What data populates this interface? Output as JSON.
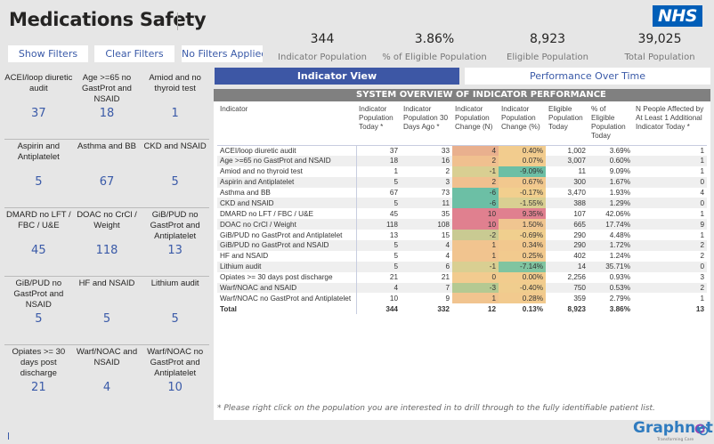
{
  "title": "Medications Safety",
  "filters": {
    "show": "Show Filters",
    "clear": "Clear Filters",
    "status": "No Filters Applied"
  },
  "kpis": [
    {
      "value": "344",
      "label": "Indicator Population"
    },
    {
      "value": "3.86%",
      "label": "% of Eligible Population"
    },
    {
      "value": "8,923",
      "label": "Eligible Population"
    },
    {
      "value": "39,025",
      "label": "Total Population"
    }
  ],
  "logo": "NHS",
  "tabs": {
    "indicator_view": "Indicator View",
    "performance": "Performance Over Time"
  },
  "tiles": [
    {
      "label": "ACEI/loop diuretic audit",
      "value": "37"
    },
    {
      "label": "Age >=65 no GastProt and NSAID",
      "value": "18"
    },
    {
      "label": "Amiod and no thyroid test",
      "value": "1"
    },
    {
      "label": "Aspirin and Antiplatelet",
      "value": "5"
    },
    {
      "label": "Asthma and BB",
      "value": "67"
    },
    {
      "label": "CKD and NSAID",
      "value": "5"
    },
    {
      "label": "DMARD no LFT / FBC / U&E",
      "value": "45"
    },
    {
      "label": "DOAC no CrCl / Weight",
      "value": "118"
    },
    {
      "label": "GiB/PUD no GastProt and Antiplatelet",
      "value": "13"
    },
    {
      "label": "GiB/PUD no GastProt and NSAID",
      "value": "5"
    },
    {
      "label": "HF and NSAID",
      "value": "5"
    },
    {
      "label": "Lithium audit",
      "value": "5"
    },
    {
      "label": "Opiates >= 30 days post discharge",
      "value": "21"
    },
    {
      "label": "Warf/NOAC and NSAID",
      "value": "4"
    },
    {
      "label": "Warf/NOAC no GastProt and Antiplatelet",
      "value": "10"
    }
  ],
  "table": {
    "title": "SYSTEM OVERVIEW OF INDICATOR PERFORMANCE",
    "headers": [
      "Indicator",
      "Indicator Population Today *",
      "Indicator Population 30 Days Ago *",
      "Indicator Population Change (N)",
      "Indicator Population Change (%)",
      "Eligible Population Today",
      "% of Eligible Population Today",
      "N People Affected by At Least 1 Additional Indicator Today *"
    ],
    "rows": [
      [
        "ACEI/loop diuretic audit",
        "37",
        "33",
        "4",
        "0.40%",
        "1,002",
        "3.69%",
        "1"
      ],
      [
        "Age >=65 no GastProt and NSAID",
        "18",
        "16",
        "2",
        "0.07%",
        "3,007",
        "0.60%",
        "1"
      ],
      [
        "Amiod and no thyroid test",
        "1",
        "2",
        "-1",
        "-9.09%",
        "11",
        "9.09%",
        "1"
      ],
      [
        "Aspirin and Antiplatelet",
        "5",
        "3",
        "2",
        "0.67%",
        "300",
        "1.67%",
        "0"
      ],
      [
        "Asthma and BB",
        "67",
        "73",
        "-6",
        "-0.17%",
        "3,470",
        "1.93%",
        "4"
      ],
      [
        "CKD and NSAID",
        "5",
        "11",
        "-6",
        "-1.55%",
        "388",
        "1.29%",
        "0"
      ],
      [
        "DMARD no LFT / FBC / U&E",
        "45",
        "35",
        "10",
        "9.35%",
        "107",
        "42.06%",
        "1"
      ],
      [
        "DOAC no CrCl / Weight",
        "118",
        "108",
        "10",
        "1.50%",
        "665",
        "17.74%",
        "9"
      ],
      [
        "GiB/PUD no GastProt and Antiplatelet",
        "13",
        "15",
        "-2",
        "-0.69%",
        "290",
        "4.48%",
        "1"
      ],
      [
        "GiB/PUD no GastProt and NSAID",
        "5",
        "4",
        "1",
        "0.34%",
        "290",
        "1.72%",
        "2"
      ],
      [
        "HF and NSAID",
        "5",
        "4",
        "1",
        "0.25%",
        "402",
        "1.24%",
        "2"
      ],
      [
        "Lithium audit",
        "5",
        "6",
        "-1",
        "-7.14%",
        "14",
        "35.71%",
        "0"
      ],
      [
        "Opiates >= 30 days post discharge",
        "21",
        "21",
        "0",
        "0.00%",
        "2,256",
        "0.93%",
        "3"
      ],
      [
        "Warf/NOAC and NSAID",
        "4",
        "7",
        "-3",
        "-0.40%",
        "750",
        "0.53%",
        "2"
      ],
      [
        "Warf/NOAC no GastProt and Antiplatelet",
        "10",
        "9",
        "1",
        "0.28%",
        "359",
        "2.79%",
        "1"
      ]
    ],
    "total": [
      "Total",
      "344",
      "332",
      "12",
      "0.13%",
      "8,923",
      "3.86%",
      "13"
    ],
    "change_n_colors": [
      "#e9b08e",
      "#f0c08f",
      "#d9cf92",
      "#f0c08f",
      "#6cbfa5",
      "#6cbfa5",
      "#e0808f",
      "#e0808f",
      "#c9ca92",
      "#f1c48f",
      "#f1c48f",
      "#d9cf92",
      "#f2cb8f",
      "#b4c992",
      "#f1c48f"
    ],
    "change_pct_colors": [
      "#f2cc8e",
      "#f2cc8e",
      "#6cbfa5",
      "#f2c88e",
      "#f2cf8e",
      "#d9cf92",
      "#e0808f",
      "#f0c590",
      "#f0cf8e",
      "#f2c88e",
      "#f2ca8e",
      "#80c4a0",
      "#f2cc8e",
      "#f0cd8e",
      "#f2ca8e"
    ]
  },
  "footnote": "* Please right click on the population you are interested in to drill through to the fully identifiable patient list.",
  "brand": {
    "name": "Graphnet",
    "tagline": "Transforming Care"
  }
}
